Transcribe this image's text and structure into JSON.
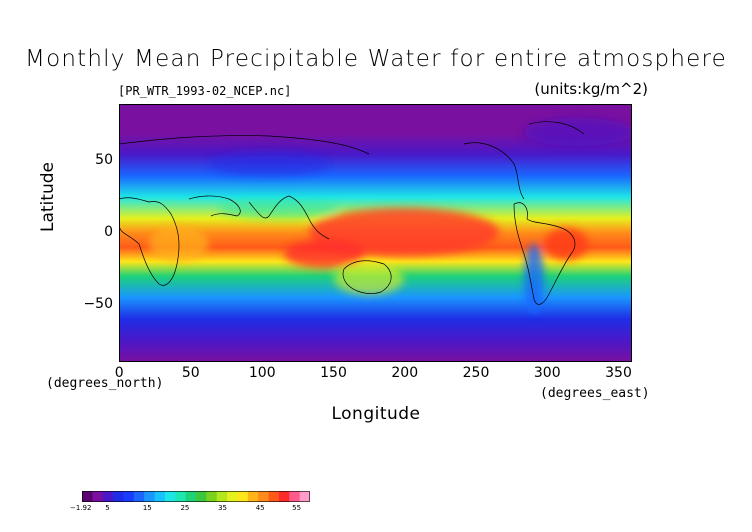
{
  "title": "Monthly Mean Precipitable Water for entire atmosphere",
  "file_label": "[PR_WTR_1993-02_NCEP.nc]",
  "units_label": "(units:kg/m^2)",
  "ylabel": "Latitude",
  "xlabel": "Longitude",
  "ylabel_units": "(degrees_north)",
  "xlabel_units": "(degrees_east)",
  "y_ticks": [
    {
      "value": 50,
      "label": "50"
    },
    {
      "value": 0,
      "label": "0"
    },
    {
      "value": -50,
      "label": "−50"
    }
  ],
  "x_ticks": [
    {
      "value": 0,
      "label": "0"
    },
    {
      "value": 50,
      "label": "50"
    },
    {
      "value": 100,
      "label": "100"
    },
    {
      "value": 150,
      "label": "150"
    },
    {
      "value": 200,
      "label": "200"
    },
    {
      "value": 250,
      "label": "250"
    },
    {
      "value": 300,
      "label": "300"
    },
    {
      "value": 350,
      "label": "350"
    }
  ],
  "colorbar": {
    "labels": [
      "−1.92",
      "5",
      "15",
      "25",
      "35",
      "45",
      "55"
    ],
    "min": -1.92,
    "max": 58,
    "colors": [
      "#5a0070",
      "#7a10a0",
      "#4a18c8",
      "#1f2ee6",
      "#1a3cff",
      "#1a66ff",
      "#1a96ff",
      "#17c2ff",
      "#1ee6e6",
      "#1ee6b0",
      "#1ed278",
      "#3cc83c",
      "#7ad21e",
      "#b4e61e",
      "#e6f01e",
      "#ffe61a",
      "#ffb41a",
      "#ff8c1a",
      "#ff5a1a",
      "#ff2a2a",
      "#ff5a8c",
      "#ff9cc8"
    ]
  },
  "chart_data": {
    "type": "heatmap",
    "title": "Monthly Mean Precipitable Water for entire atmosphere",
    "xlabel": "Longitude",
    "ylabel": "Latitude",
    "xlim": [
      0,
      360
    ],
    "ylim": [
      -90,
      90
    ],
    "units": "kg/m^2",
    "zlim": [
      -1.92,
      58
    ],
    "zonal_profile": {
      "lat": [
        90,
        70,
        55,
        40,
        25,
        10,
        0,
        -10,
        -20,
        -30,
        -45,
        -60,
        -75,
        -90
      ],
      "value": [
        2,
        3,
        6,
        12,
        22,
        38,
        45,
        48,
        40,
        28,
        15,
        8,
        4,
        2
      ]
    }
  }
}
